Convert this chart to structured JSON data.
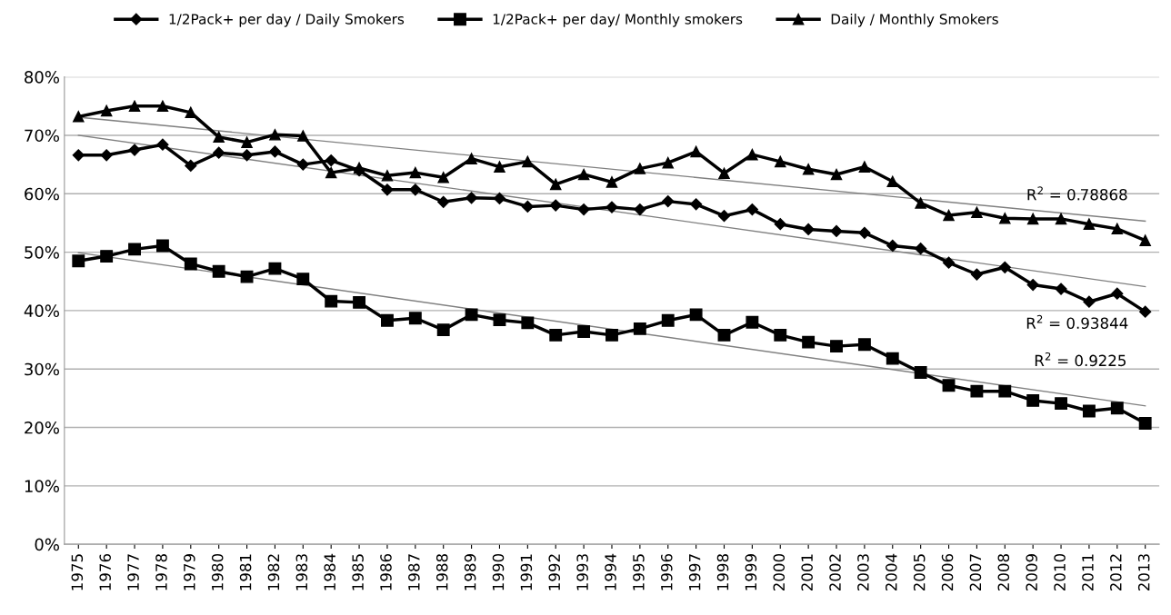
{
  "chart_data": {
    "type": "line",
    "categories": [
      "1975",
      "1976",
      "1977",
      "1978",
      "1979",
      "1980",
      "1981",
      "1982",
      "1983",
      "1984",
      "1985",
      "1986",
      "1987",
      "1988",
      "1989",
      "1990",
      "1991",
      "1992",
      "1993",
      "1994",
      "1995",
      "1996",
      "1997",
      "1998",
      "1999",
      "2000",
      "2001",
      "2002",
      "2003",
      "2004",
      "2005",
      "2006",
      "2007",
      "2008",
      "2009",
      "2010",
      "2011",
      "2012",
      "2013"
    ],
    "series": [
      {
        "name": "1/2Pack+ per day / Daily Smokers",
        "color": "#000000",
        "marker": "diamond",
        "values": [
          66.6,
          66.6,
          67.5,
          68.4,
          64.8,
          67.0,
          66.6,
          67.2,
          65.0,
          65.7,
          64.0,
          60.7,
          60.7,
          58.6,
          59.3,
          59.2,
          57.8,
          58.0,
          57.3,
          57.7,
          57.3,
          58.7,
          58.2,
          56.2,
          57.3,
          54.8,
          53.9,
          53.6,
          53.3,
          51.1,
          50.6,
          48.2,
          46.2,
          47.4,
          44.4,
          43.7,
          41.5,
          42.9,
          39.8
        ]
      },
      {
        "name": "1/2Pack+ per day/ Monthly smokers",
        "color": "#000000",
        "marker": "square",
        "values": [
          48.5,
          49.3,
          50.5,
          51.1,
          48.0,
          46.7,
          45.8,
          47.2,
          45.4,
          41.6,
          41.4,
          38.3,
          38.7,
          36.7,
          39.3,
          38.4,
          37.9,
          35.8,
          36.4,
          35.8,
          36.9,
          38.3,
          39.3,
          35.8,
          38.0,
          35.8,
          34.6,
          33.9,
          34.2,
          31.8,
          29.4,
          27.2,
          26.2,
          26.2,
          24.6,
          24.1,
          22.8,
          23.3,
          20.7
        ]
      },
      {
        "name": "Daily / Monthly Smokers",
        "color": "#000000",
        "marker": "triangle",
        "values": [
          73.2,
          74.2,
          75.0,
          75.0,
          73.9,
          69.7,
          68.8,
          70.1,
          69.9,
          63.6,
          64.4,
          63.1,
          63.6,
          62.8,
          66.0,
          64.6,
          65.5,
          61.6,
          63.3,
          62.0,
          64.3,
          65.3,
          67.2,
          63.5,
          66.7,
          65.5,
          64.2,
          63.3,
          64.6,
          62.1,
          58.4,
          56.3,
          56.8,
          55.8,
          55.7,
          55.7,
          54.8,
          54.0,
          52.0
        ]
      },
      {
        "type": "line",
        "color": "#808080",
        "marker": "none",
        "values": [
          70.0,
          null,
          null,
          null,
          null,
          null,
          null,
          null,
          null,
          null,
          null,
          null,
          null,
          null,
          null,
          null,
          null,
          null,
          null,
          null,
          null,
          null,
          null,
          null,
          null,
          null,
          null,
          null,
          null,
          null,
          null,
          null,
          null,
          null,
          null,
          null,
          null,
          null,
          44.1
        ]
      },
      {
        "type": "line",
        "color": "#808080",
        "marker": "none",
        "values": [
          49.9,
          null,
          null,
          null,
          null,
          null,
          null,
          null,
          null,
          null,
          null,
          null,
          null,
          null,
          null,
          null,
          null,
          null,
          null,
          null,
          null,
          null,
          null,
          null,
          null,
          null,
          null,
          null,
          null,
          null,
          null,
          null,
          null,
          null,
          null,
          null,
          null,
          null,
          23.7
        ]
      },
      {
        "type": "line",
        "color": "#808080",
        "marker": "none",
        "values": [
          73.1,
          null,
          null,
          null,
          null,
          null,
          null,
          null,
          null,
          null,
          null,
          null,
          null,
          null,
          null,
          null,
          null,
          null,
          null,
          null,
          null,
          null,
          null,
          null,
          null,
          null,
          null,
          null,
          null,
          null,
          null,
          null,
          null,
          null,
          null,
          null,
          null,
          null,
          55.3
        ]
      }
    ],
    "ylim": [
      0,
      80
    ],
    "yticks": [
      {
        "value": 0,
        "label": "0%"
      },
      {
        "value": 10,
        "label": "10%"
      },
      {
        "value": 20,
        "label": "20%"
      },
      {
        "value": 30,
        "label": "30%"
      },
      {
        "value": 40,
        "label": "40%"
      },
      {
        "value": 50,
        "label": "50%"
      },
      {
        "value": 60,
        "label": "60%"
      },
      {
        "value": 70,
        "label": "70%"
      },
      {
        "value": 80,
        "label": "80%"
      }
    ],
    "grid": "y",
    "legend": "top",
    "annotations": [
      "R$^{2}$ = 0.78868",
      "R$^{2}$ = 0.93844",
      "R$^{2}$ = 0.9225"
    ]
  }
}
